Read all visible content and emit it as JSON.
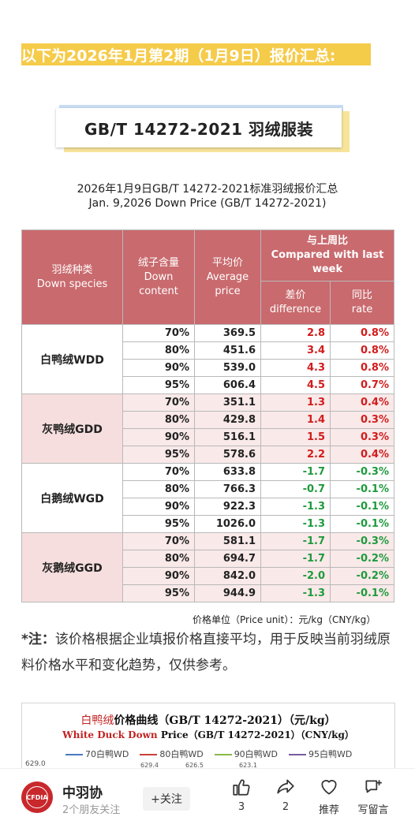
{
  "heading": "以下为2026年1月第2期（1月9日）报价汇总:",
  "banner": "GB/T 14272-2021 羽绒服装",
  "table_caption_cn": "2026年1月9日GB/T 14272-2021标准羽绒报价汇总",
  "table_caption_en": "Jan. 9,2026 Down Price (GB/T 14272-2021)",
  "table": {
    "headers": {
      "species": "羽绒种类\nDown species",
      "content": "绒子含量\nDown content",
      "avg": "平均价\nAverage price",
      "compare": "与上周比\nCompared with last week",
      "diff": "差价\ndifference",
      "rate": "同比\nrate"
    },
    "groups": [
      {
        "species": "白鸭绒WDD",
        "rows": [
          {
            "content": "70%",
            "price": "369.5",
            "diff": "2.8",
            "rate": "0.8%"
          },
          {
            "content": "80%",
            "price": "451.6",
            "diff": "3.4",
            "rate": "0.8%"
          },
          {
            "content": "90%",
            "price": "539.0",
            "diff": "4.3",
            "rate": "0.8%"
          },
          {
            "content": "95%",
            "price": "606.4",
            "diff": "4.5",
            "rate": "0.7%"
          }
        ]
      },
      {
        "species": "灰鸭绒GDD",
        "rows": [
          {
            "content": "70%",
            "price": "351.1",
            "diff": "1.3",
            "rate": "0.4%"
          },
          {
            "content": "80%",
            "price": "429.8",
            "diff": "1.4",
            "rate": "0.3%"
          },
          {
            "content": "90%",
            "price": "516.1",
            "diff": "1.5",
            "rate": "0.3%"
          },
          {
            "content": "95%",
            "price": "578.6",
            "diff": "2.2",
            "rate": "0.4%"
          }
        ]
      },
      {
        "species": "白鹅绒WGD",
        "rows": [
          {
            "content": "70%",
            "price": "633.8",
            "diff": "-1.7",
            "rate": "-0.3%"
          },
          {
            "content": "80%",
            "price": "766.3",
            "diff": "-0.7",
            "rate": "-0.1%"
          },
          {
            "content": "90%",
            "price": "922.3",
            "diff": "-1.3",
            "rate": "-0.1%"
          },
          {
            "content": "95%",
            "price": "1026.0",
            "diff": "-1.3",
            "rate": "-0.1%"
          }
        ]
      },
      {
        "species": "灰鹅绒GGD",
        "rows": [
          {
            "content": "70%",
            "price": "581.1",
            "diff": "-1.7",
            "rate": "-0.3%"
          },
          {
            "content": "80%",
            "price": "694.7",
            "diff": "-1.7",
            "rate": "-0.2%"
          },
          {
            "content": "90%",
            "price": "842.0",
            "diff": "-2.0",
            "rate": "-0.2%"
          },
          {
            "content": "95%",
            "price": "944.9",
            "diff": "-1.3",
            "rate": "-0.1%"
          }
        ]
      }
    ],
    "colors": {
      "header": "#c96a6e",
      "positive": "#d21c1c",
      "negative": "#1e9a3c",
      "band": "#f9e9e9"
    }
  },
  "unit_note": "价格单位（Price unit）：元/kg（CNY/kg）",
  "note": {
    "prefix": "*注：",
    "text": "该价格根据企业填报价格直接平均，用于反映当前羽绒原料价格水平和变化趋势，仅供参考。"
  },
  "chart_preview": {
    "title_red": "白鸭绒",
    "title_rest": "价格曲线（GB/T 14272-2021）（元/kg）",
    "subtitle_red": "White Duck Down",
    "subtitle_rest": " Price（GB/T 14272-2021）（CNY/kg）",
    "legend": [
      {
        "label": "70白鸭WD",
        "color": "#4a78c2"
      },
      {
        "label": "80白鸭WD",
        "color": "#c9403a"
      },
      {
        "label": "90白鸭WD",
        "color": "#8ab84a"
      },
      {
        "label": "95白鸭WD",
        "color": "#7a5a9e"
      }
    ],
    "y_tick": "629.0",
    "point_labels": [
      "629.4",
      "626.5",
      "623.1"
    ]
  },
  "account": {
    "name": "中羽协",
    "sub": "2个朋友关注",
    "follow_label": "+关注",
    "logo_text": "CFDIA"
  },
  "actions": {
    "like_count": "3",
    "share_count": "2",
    "recommend_label": "推荐",
    "comment_label": "写留言"
  }
}
